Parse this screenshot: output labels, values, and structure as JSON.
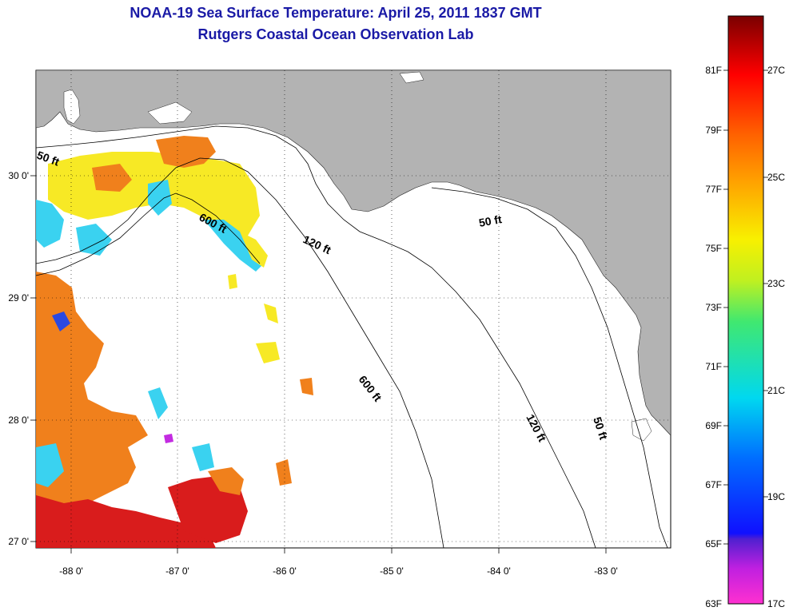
{
  "title": "NOAA-19 Sea Surface Temperature:  April 25, 2011 1837 GMT",
  "subtitle": "Rutgers Coastal Ocean Observation Lab",
  "lon_ticks": [
    "-88 0'",
    "-87 0'",
    "-86 0'",
    "-85 0'",
    "-84 0'",
    "-83 0'"
  ],
  "lat_ticks": [
    "30 0'",
    "29 0'",
    "28 0'",
    "27 0'"
  ],
  "contours": {
    "50_west": "50 ft",
    "600_upper": "600 ft",
    "120_upper": "120 ft",
    "50_east": "50 ft",
    "600_lower": "600 ft",
    "120_lower": "120 ft",
    "50_lower": "50 ft"
  },
  "colorbar": {
    "f_labels": [
      "81F",
      "79F",
      "77F",
      "75F",
      "73F",
      "71F",
      "69F",
      "67F",
      "65F",
      "63F"
    ],
    "c_labels": [
      "27C",
      "25C",
      "23C",
      "21C",
      "19C",
      "17C"
    ]
  },
  "colors": {
    "land": "#b3b3b3",
    "water": "#ffffff",
    "title": "#1a1aa6",
    "warm": "#d81010",
    "orange": "#f07a10",
    "yellow": "#f7e81a",
    "cyan": "#30d0f0",
    "blue": "#2040e0"
  }
}
